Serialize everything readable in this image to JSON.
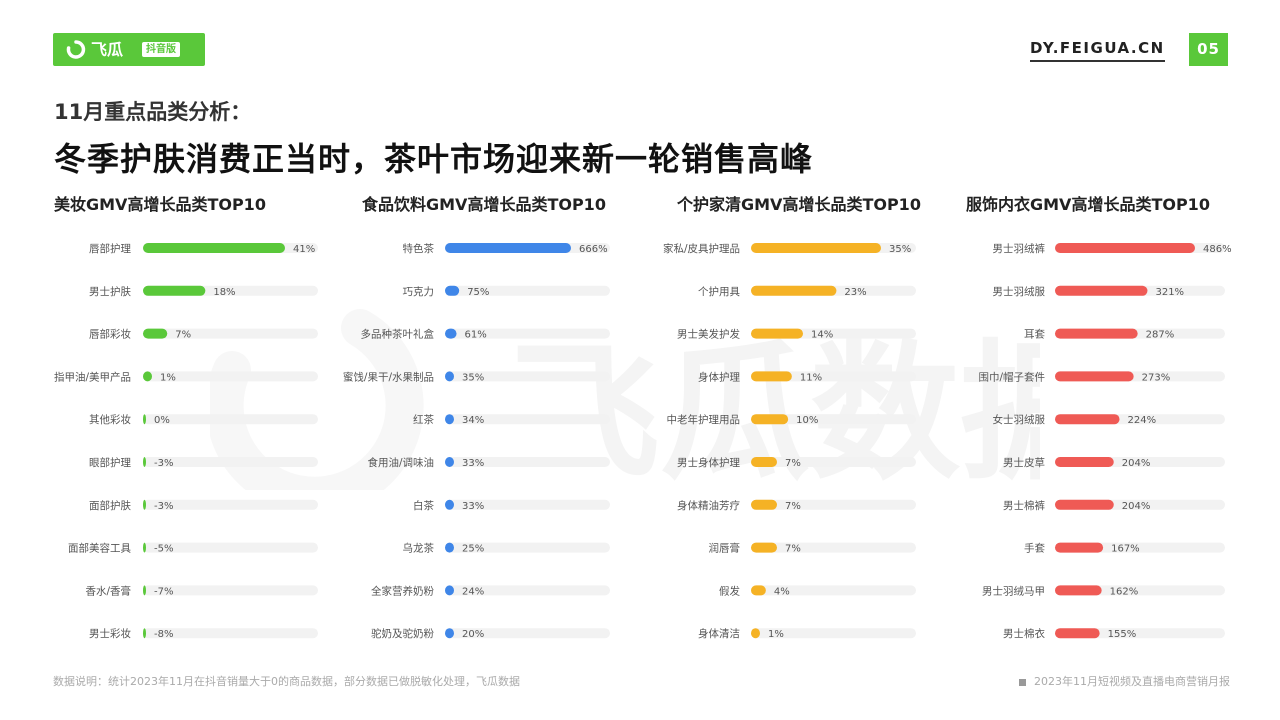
{
  "header": {
    "logo_text": "飞瓜",
    "logo_tag": "抖音版",
    "site": "DY.FEIGUA.CN",
    "page_number": "05"
  },
  "subtitle": "11月重点品类分析：",
  "title": "冬季护肤消费正当时，茶叶市场迎来新一轮销售高峰",
  "footer": {
    "note": "数据说明：统计2023年11月在抖音销量大于0的商品数据，部分数据已做脱敏化处理，飞瓜数据",
    "report": "2023年11月短视频及直播电商营销月报"
  },
  "watermark": "飞瓜数据",
  "colors": {
    "accent": "#5ac83a",
    "track": "#f2f2f2"
  },
  "chart_data": [
    {
      "type": "bar",
      "title": "美妆GMV高增长品类TOP10",
      "color": "#5ac83a",
      "categories": [
        "唇部护理",
        "男士护肤",
        "唇部彩妆",
        "指甲油/美甲产品",
        "其他彩妆",
        "眼部护理",
        "面部护肤",
        "面部美容工具",
        "香水/香膏",
        "男士彩妆"
      ],
      "values": [
        41,
        18,
        7,
        1,
        0,
        -3,
        -3,
        -5,
        -7,
        -8
      ],
      "value_labels": [
        "41%",
        "18%",
        "7%",
        "1%",
        "0%",
        "-3%",
        "-3%",
        "-5%",
        "-7%",
        "-8%"
      ]
    },
    {
      "type": "bar",
      "title": "食品饮料GMV高增长品类TOP10",
      "color": "#3f86e8",
      "categories": [
        "特色茶",
        "巧克力",
        "多品种茶叶礼盒",
        "蜜饯/果干/水果制品",
        "红茶",
        "食用油/调味油",
        "白茶",
        "乌龙茶",
        "全家营养奶粉",
        "驼奶及驼奶粉"
      ],
      "values": [
        666,
        75,
        61,
        35,
        34,
        33,
        33,
        25,
        24,
        20
      ],
      "value_labels": [
        "666%",
        "75%",
        "61%",
        "35%",
        "34%",
        "33%",
        "33%",
        "25%",
        "24%",
        "20%"
      ]
    },
    {
      "type": "bar",
      "title": "个护家清GMV高增长品类TOP10",
      "color": "#f5b225",
      "categories": [
        "家私/皮具护理品",
        "个护用具",
        "男士美发护发",
        "身体护理",
        "中老年护理用品",
        "男士身体护理",
        "身体精油芳疗",
        "润唇膏",
        "假发",
        "身体清洁"
      ],
      "values": [
        35,
        23,
        14,
        11,
        10,
        7,
        7,
        7,
        4,
        1
      ],
      "value_labels": [
        "35%",
        "23%",
        "14%",
        "11%",
        "10%",
        "7%",
        "7%",
        "7%",
        "4%",
        "1%"
      ]
    },
    {
      "type": "bar",
      "title": "服饰内衣GMV高增长品类TOP10",
      "color": "#ef5a55",
      "categories": [
        "男士羽绒裤",
        "男士羽绒服",
        "耳套",
        "围巾/帽子套件",
        "女士羽绒服",
        "男士皮草",
        "男士棉裤",
        "手套",
        "男士羽绒马甲",
        "男士棉衣"
      ],
      "values": [
        486,
        321,
        287,
        273,
        224,
        204,
        204,
        167,
        162,
        155
      ],
      "value_labels": [
        "486%",
        "321%",
        "287%",
        "273%",
        "224%",
        "204%",
        "204%",
        "167%",
        "162%",
        "155%"
      ]
    }
  ]
}
